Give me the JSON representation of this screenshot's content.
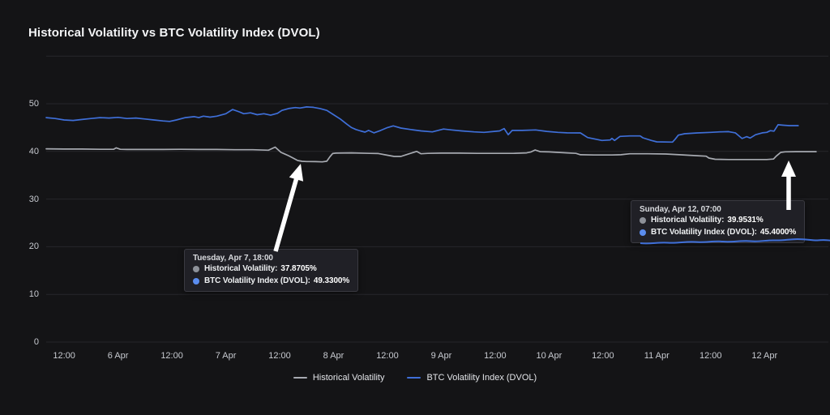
{
  "title": "Historical Volatility vs BTC Volatility Index (DVOL)",
  "colors": {
    "background": "#141416",
    "grid": "#26262b",
    "axis_text": "#c7cad0",
    "title_text": "#f3f4f6",
    "legend_text": "#e3e5e9",
    "hv_line": "#a7aab1",
    "dvol_line": "#3f6fd8",
    "hv_dot": "#8d9199",
    "dvol_dot": "#5b8def",
    "tooltip_bg": "#212127",
    "tooltip_border": "#3a3a41",
    "arrow": "#ffffff"
  },
  "legend": {
    "items": [
      {
        "label": "Historical Volatility",
        "series": "hv"
      },
      {
        "label": "BTC Volatility Index (DVOL)",
        "series": "dvol"
      }
    ]
  },
  "tooltips": [
    {
      "date": "Tuesday, Apr 7, 18:00",
      "rows": [
        {
          "series": "hv",
          "label": "Historical Volatility:",
          "value": "37.8705%"
        },
        {
          "series": "dvol",
          "label": "BTC Volatility Index (DVOL):",
          "value": "49.3300%"
        }
      ]
    },
    {
      "date": "Sunday, Apr 12, 07:00",
      "rows": [
        {
          "series": "hv",
          "label": "Historical Volatility:",
          "value": "39.9531%"
        },
        {
          "series": "dvol",
          "label": "BTC Volatility Index (DVOL):",
          "value": "45.4000%"
        }
      ]
    }
  ],
  "chart_data": {
    "type": "line",
    "title": "Historical Volatility vs BTC Volatility Index (DVOL)",
    "xlabel": "",
    "ylabel": "",
    "x_unit": "hours since Apr 5 08:00",
    "ylim": [
      0,
      60
    ],
    "grid": "horizontal",
    "legend_position": "bottom",
    "y_ticks": [
      0,
      10,
      20,
      30,
      40,
      50
    ],
    "grid_values": [
      0,
      10,
      20,
      30,
      40,
      50,
      60
    ],
    "x_ticks": [
      {
        "label": "12:00",
        "t": 4
      },
      {
        "label": "6 Apr",
        "t": 16
      },
      {
        "label": "12:00",
        "t": 28
      },
      {
        "label": "7 Apr",
        "t": 40
      },
      {
        "label": "12:00",
        "t": 52
      },
      {
        "label": "8 Apr",
        "t": 64
      },
      {
        "label": "12:00",
        "t": 76
      },
      {
        "label": "9 Apr",
        "t": 88
      },
      {
        "label": "12:00",
        "t": 100
      },
      {
        "label": "10 Apr",
        "t": 112
      },
      {
        "label": "12:00",
        "t": 124
      },
      {
        "label": "11 Apr",
        "t": 136
      },
      {
        "label": "12:00",
        "t": 148
      },
      {
        "label": "12 Apr",
        "t": 160
      }
    ],
    "annotated_points": [
      {
        "time": "Tuesday, Apr 7, 18:00",
        "hv": 37.8705,
        "dvol": 49.33
      },
      {
        "time": "Sunday, Apr 12, 07:00",
        "hv": 39.9531,
        "dvol": 45.4
      }
    ],
    "series": [
      {
        "name": "Historical Volatility",
        "key": "hv",
        "points": [
          [
            0,
            40.55
          ],
          [
            4,
            40.5
          ],
          [
            8,
            40.5
          ],
          [
            12,
            40.45
          ],
          [
            15,
            40.45
          ],
          [
            15.6,
            40.75
          ],
          [
            16.5,
            40.45
          ],
          [
            18,
            40.4
          ],
          [
            22,
            40.4
          ],
          [
            26,
            40.4
          ],
          [
            30,
            40.45
          ],
          [
            34,
            40.4
          ],
          [
            38,
            40.4
          ],
          [
            42,
            40.35
          ],
          [
            46,
            40.35
          ],
          [
            49.5,
            40.25
          ],
          [
            51,
            40.9
          ],
          [
            52.3,
            39.8
          ],
          [
            53,
            39.5
          ],
          [
            54,
            39.1
          ],
          [
            55,
            38.6
          ],
          [
            56,
            38.1
          ],
          [
            57,
            37.92
          ],
          [
            58,
            37.87
          ],
          [
            60,
            37.85
          ],
          [
            61.5,
            37.8
          ],
          [
            62.5,
            37.95
          ],
          [
            63.2,
            38.9
          ],
          [
            63.8,
            39.55
          ],
          [
            64.5,
            39.65
          ],
          [
            68,
            39.7
          ],
          [
            72,
            39.6
          ],
          [
            74,
            39.55
          ],
          [
            76,
            39.2
          ],
          [
            77.5,
            38.95
          ],
          [
            79,
            38.95
          ],
          [
            80.5,
            39.4
          ],
          [
            82.5,
            40.0
          ],
          [
            83.5,
            39.5
          ],
          [
            85,
            39.6
          ],
          [
            88,
            39.65
          ],
          [
            92,
            39.65
          ],
          [
            96,
            39.6
          ],
          [
            100,
            39.6
          ],
          [
            104,
            39.6
          ],
          [
            107,
            39.7
          ],
          [
            108,
            39.9
          ],
          [
            108.9,
            40.3
          ],
          [
            110,
            39.95
          ],
          [
            112,
            39.9
          ],
          [
            114,
            39.8
          ],
          [
            116,
            39.7
          ],
          [
            118,
            39.6
          ],
          [
            119,
            39.3
          ],
          [
            122,
            39.25
          ],
          [
            126,
            39.25
          ],
          [
            128,
            39.3
          ],
          [
            130,
            39.5
          ],
          [
            134,
            39.5
          ],
          [
            138,
            39.45
          ],
          [
            141,
            39.3
          ],
          [
            143,
            39.2
          ],
          [
            145,
            39.1
          ],
          [
            147,
            39.0
          ],
          [
            147.6,
            38.6
          ],
          [
            149,
            38.35
          ],
          [
            152,
            38.3
          ],
          [
            156,
            38.3
          ],
          [
            160.5,
            38.3
          ],
          [
            162,
            38.4
          ],
          [
            162.6,
            39.0
          ],
          [
            163.6,
            39.8
          ],
          [
            164.6,
            39.92
          ],
          [
            167,
            39.95
          ],
          [
            169.5,
            39.95
          ],
          [
            171.5,
            39.95
          ]
        ]
      },
      {
        "name": "BTC Volatility Index (DVOL)",
        "key": "dvol",
        "points": [
          [
            0,
            47.1
          ],
          [
            2,
            46.9
          ],
          [
            4,
            46.6
          ],
          [
            6,
            46.5
          ],
          [
            8,
            46.7
          ],
          [
            10,
            46.9
          ],
          [
            12,
            47.1
          ],
          [
            14,
            47.0
          ],
          [
            16,
            47.15
          ],
          [
            18,
            46.9
          ],
          [
            20,
            47.0
          ],
          [
            22,
            46.8
          ],
          [
            24,
            46.6
          ],
          [
            26,
            46.4
          ],
          [
            27.5,
            46.3
          ],
          [
            29,
            46.6
          ],
          [
            31,
            47.1
          ],
          [
            33,
            47.3
          ],
          [
            34,
            47.1
          ],
          [
            35,
            47.4
          ],
          [
            36.5,
            47.2
          ],
          [
            38,
            47.4
          ],
          [
            40,
            47.9
          ],
          [
            41.5,
            48.8
          ],
          [
            43,
            48.3
          ],
          [
            44,
            47.9
          ],
          [
            45.5,
            48.1
          ],
          [
            47,
            47.7
          ],
          [
            48.5,
            47.9
          ],
          [
            50,
            47.6
          ],
          [
            51.5,
            48.0
          ],
          [
            52.5,
            48.6
          ],
          [
            54,
            49.0
          ],
          [
            55.5,
            49.2
          ],
          [
            56.5,
            49.1
          ],
          [
            58,
            49.33
          ],
          [
            59.5,
            49.25
          ],
          [
            61,
            49.0
          ],
          [
            62.5,
            48.6
          ],
          [
            64,
            47.7
          ],
          [
            65.5,
            46.8
          ],
          [
            67,
            45.7
          ],
          [
            68,
            45.0
          ],
          [
            69,
            44.6
          ],
          [
            70,
            44.3
          ],
          [
            71,
            44.05
          ],
          [
            71.8,
            44.4
          ],
          [
            73,
            43.9
          ],
          [
            74.5,
            44.4
          ],
          [
            76,
            45.0
          ],
          [
            77.3,
            45.35
          ],
          [
            79,
            44.9
          ],
          [
            81.2,
            44.6
          ],
          [
            83.5,
            44.3
          ],
          [
            86,
            44.1
          ],
          [
            88.5,
            44.7
          ],
          [
            90.3,
            44.5
          ],
          [
            92.5,
            44.3
          ],
          [
            95.3,
            44.1
          ],
          [
            97.5,
            44.0
          ],
          [
            99.8,
            44.2
          ],
          [
            101,
            44.3
          ],
          [
            102,
            44.8
          ],
          [
            102.9,
            43.5
          ],
          [
            103.8,
            44.4
          ],
          [
            106,
            44.4
          ],
          [
            109,
            44.5
          ],
          [
            111.5,
            44.2
          ],
          [
            114,
            44.0
          ],
          [
            116,
            43.9
          ],
          [
            119,
            43.88
          ],
          [
            120.6,
            42.9
          ],
          [
            123.8,
            42.3
          ],
          [
            125.6,
            42.4
          ],
          [
            126,
            42.74
          ],
          [
            126.6,
            42.3
          ],
          [
            127.8,
            43.14
          ],
          [
            130,
            43.25
          ],
          [
            132.3,
            43.25
          ],
          [
            132.9,
            42.86
          ],
          [
            134.8,
            42.3
          ],
          [
            136,
            42.0
          ],
          [
            139.5,
            41.96
          ],
          [
            140.1,
            42.57
          ],
          [
            140.8,
            43.42
          ],
          [
            142.2,
            43.71
          ],
          [
            145,
            43.88
          ],
          [
            148,
            44.0
          ],
          [
            150,
            44.1
          ],
          [
            152,
            44.15
          ],
          [
            153.5,
            43.9
          ],
          [
            155,
            42.7
          ],
          [
            156,
            43.1
          ],
          [
            156.8,
            42.8
          ],
          [
            158,
            43.5
          ],
          [
            159.5,
            43.9
          ],
          [
            160.5,
            44.0
          ],
          [
            161.3,
            44.35
          ],
          [
            162.1,
            44.25
          ],
          [
            163,
            45.6
          ],
          [
            164.2,
            45.5
          ],
          [
            165.5,
            45.4
          ],
          [
            167.5,
            45.4
          ]
        ]
      }
    ]
  }
}
